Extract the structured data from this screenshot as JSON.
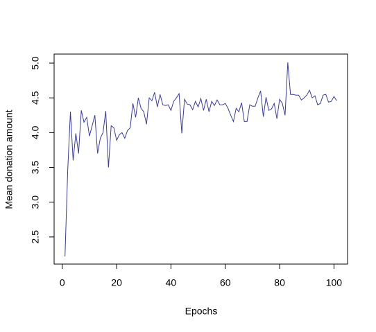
{
  "chart_data": {
    "type": "line",
    "xlabel": "Epochs",
    "ylabel": "Mean donation amount",
    "color": "#3a3a9c",
    "x": [
      1,
      2,
      3,
      4,
      5,
      6,
      7,
      8,
      9,
      10,
      11,
      12,
      13,
      14,
      15,
      16,
      17,
      18,
      19,
      20,
      21,
      22,
      23,
      24,
      25,
      26,
      27,
      28,
      29,
      30,
      31,
      32,
      33,
      34,
      35,
      36,
      37,
      38,
      39,
      40,
      41,
      42,
      43,
      44,
      45,
      46,
      47,
      48,
      49,
      50,
      51,
      52,
      53,
      54,
      55,
      56,
      57,
      58,
      59,
      60,
      61,
      62,
      63,
      64,
      65,
      66,
      67,
      68,
      69,
      70,
      71,
      72,
      73,
      74,
      75,
      76,
      77,
      78,
      79,
      80,
      81,
      82,
      83,
      84,
      85,
      86,
      87,
      88,
      89,
      90,
      91,
      92,
      93,
      94,
      95,
      96,
      97,
      98,
      99,
      100,
      101
    ],
    "values": [
      2.22,
      3.45,
      4.3,
      3.6,
      3.99,
      3.7,
      4.32,
      4.15,
      4.22,
      3.95,
      4.1,
      4.25,
      3.7,
      3.92,
      4.0,
      4.31,
      3.5,
      4.1,
      4.07,
      3.89,
      3.97,
      4.0,
      3.92,
      4.03,
      4.07,
      4.42,
      4.22,
      4.5,
      4.35,
      4.3,
      4.12,
      4.5,
      4.46,
      4.58,
      4.37,
      4.55,
      4.4,
      4.39,
      4.4,
      4.32,
      4.45,
      4.5,
      4.56,
      3.99,
      4.48,
      4.41,
      4.4,
      4.33,
      4.45,
      4.37,
      4.49,
      4.32,
      4.48,
      4.3,
      4.45,
      4.39,
      4.47,
      4.4,
      4.4,
      4.42,
      4.35,
      4.25,
      4.16,
      4.35,
      4.3,
      4.43,
      4.16,
      4.16,
      4.4,
      4.38,
      4.38,
      4.5,
      4.6,
      4.23,
      4.51,
      4.32,
      4.34,
      4.42,
      4.2,
      4.48,
      4.42,
      4.25,
      5.01,
      4.55,
      4.55,
      4.54,
      4.54,
      4.47,
      4.5,
      4.54,
      4.61,
      4.5,
      4.53,
      4.4,
      4.42,
      4.54,
      4.55,
      4.44,
      4.45,
      4.52,
      4.46
    ],
    "xlim": [
      -3,
      105
    ],
    "ylim": [
      2.11,
      5.13
    ],
    "xticks": [
      0,
      20,
      40,
      60,
      80,
      100
    ],
    "yticks": [
      2.5,
      {
        "value": 3,
        "label": "3.0"
      },
      3.5,
      {
        "value": 4,
        "label": "4.0"
      },
      4.5,
      {
        "value": 5,
        "label": "5.0"
      }
    ]
  }
}
